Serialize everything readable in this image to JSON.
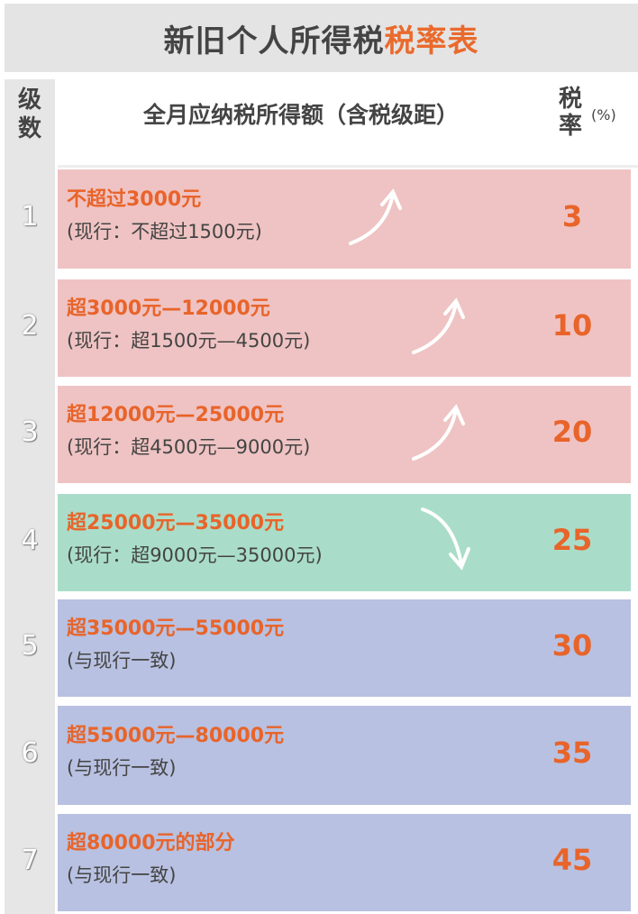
{
  "title": {
    "main": "新旧个人所得税",
    "highlight": "税率表"
  },
  "header": {
    "level": "级数",
    "range": "全月应纳税所得额（含税级距）",
    "rate": "税率",
    "rate_unit": "(%)"
  },
  "colors": {
    "increase": "#efc3c3",
    "unchanged_lower": "#a9ddc9",
    "same": "#b8c1e1",
    "accent": "#e8642a"
  },
  "rows": [
    {
      "level": "1",
      "new": "不超过3000元",
      "old": "(现行：不超过1500元)",
      "rate": "3",
      "arrow": "up-arrow-icon"
    },
    {
      "level": "2",
      "new": "超3000元—12000元",
      "old": "(现行：超1500元—4500元)",
      "rate": "10",
      "arrow": "up-arrow-icon"
    },
    {
      "level": "3",
      "new": "超12000元—25000元",
      "old": "(现行：超4500元—9000元)",
      "rate": "20",
      "arrow": "up-arrow-icon"
    },
    {
      "level": "4",
      "new": "超25000元—35000元",
      "old": "(现行：超9000元—35000元)",
      "rate": "25",
      "arrow": "down-arrow-icon"
    },
    {
      "level": "5",
      "new": "超35000元—55000元",
      "old": "(与现行一致)",
      "rate": "30"
    },
    {
      "level": "6",
      "new": "超55000元—80000元",
      "old": "(与现行一致)",
      "rate": "35"
    },
    {
      "level": "7",
      "new": "超80000元的部分",
      "old": "(与现行一致)",
      "rate": "45"
    }
  ]
}
